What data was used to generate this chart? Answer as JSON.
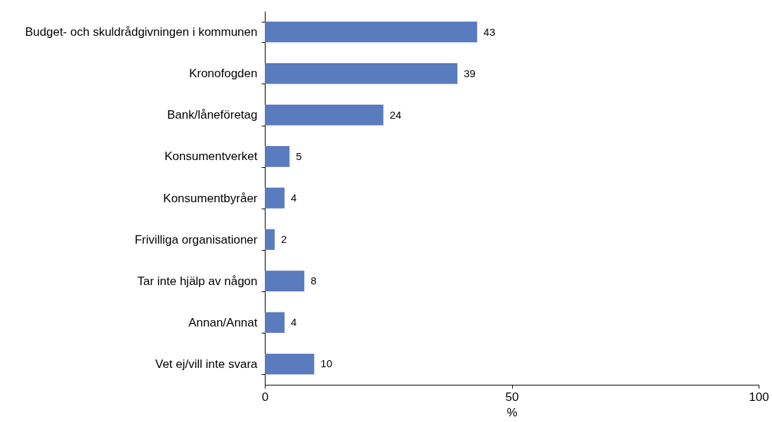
{
  "chart_data": {
    "type": "bar",
    "orientation": "horizontal",
    "categories": [
      "Budget- och skuldrådgivningen i kommunen",
      "Kronofogden",
      "Bank/låneföretag",
      "Konsumentverket",
      "Konsumentbyråer",
      "Frivilliga organisationer",
      "Tar inte hjälp av någon",
      "Annan/Annat",
      "Vet ej/vill inte svara"
    ],
    "values": [
      43,
      39,
      24,
      5,
      4,
      2,
      8,
      4,
      10
    ],
    "color": "#5b7bbf",
    "xlim": [
      0,
      100
    ],
    "xticks": [
      0,
      50,
      100
    ],
    "xlabel": "%",
    "data_labels": true
  }
}
